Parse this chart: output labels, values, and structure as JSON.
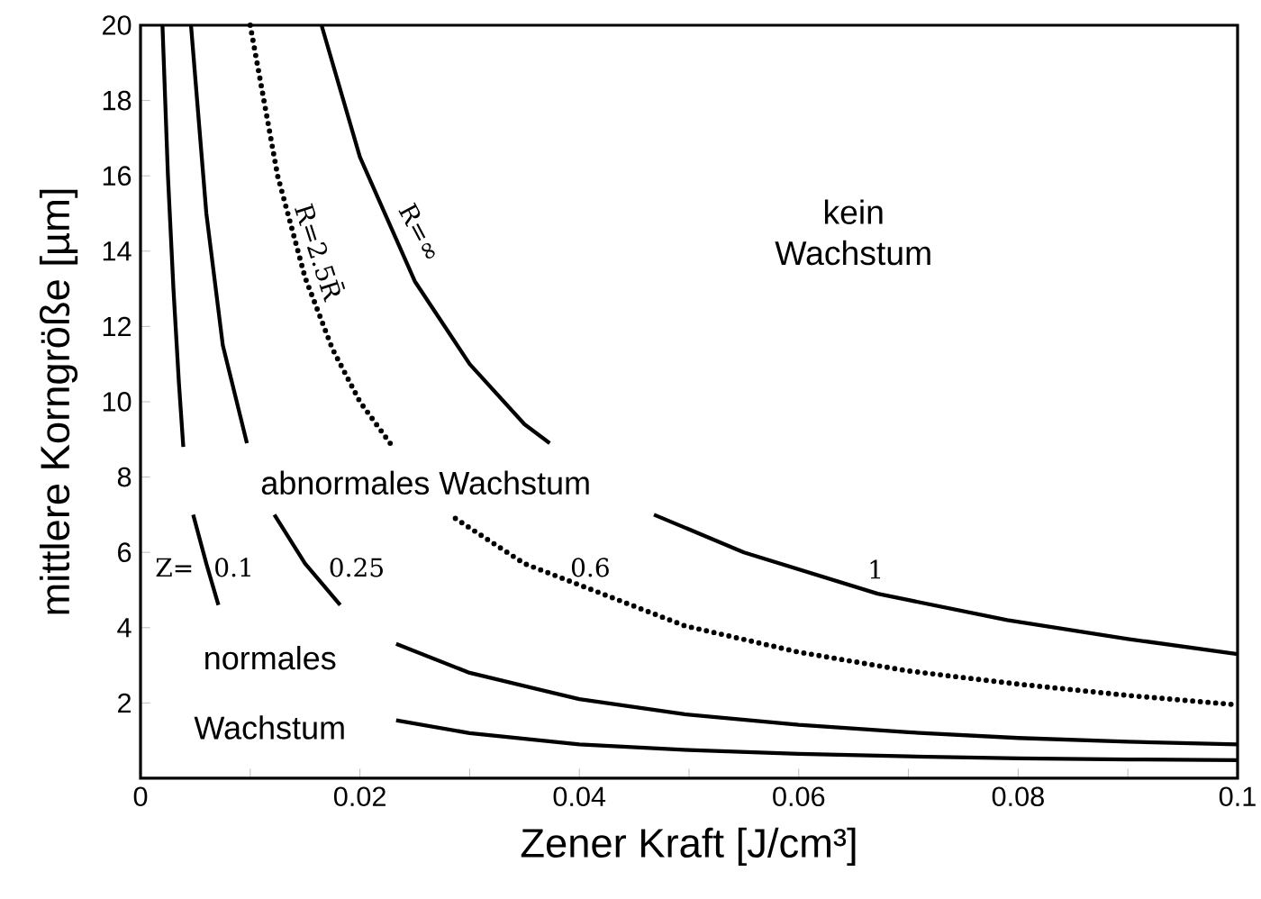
{
  "chart_data": {
    "type": "line",
    "xlabel": "Zener Kraft [J/cm³]",
    "ylabel": "mittlere Korngröße [µm]",
    "xlim": [
      0,
      0.1
    ],
    "ylim": [
      0,
      20
    ],
    "xticks": [
      0,
      {
        "value": 0.01,
        "label": null
      },
      0.02,
      {
        "value": 0.03,
        "label": null
      },
      0.04,
      {
        "value": 0.05,
        "label": null
      },
      0.06,
      {
        "value": 0.07,
        "label": null
      },
      0.08,
      {
        "value": 0.09,
        "label": null
      },
      0.1
    ],
    "yticks": [
      2,
      4,
      6,
      8,
      10,
      12,
      14,
      16,
      18,
      20
    ],
    "grid": false,
    "legend": false,
    "marker": "none",
    "series": [
      {
        "name": "0.1",
        "color": "#000000",
        "line_style": "solid",
        "x": [
          0.002,
          0.0025,
          0.003,
          0.0035,
          0.0039,
          0.0043,
          0.0048,
          0.006,
          0.0071,
          0.015,
          0.0233,
          0.03,
          0.04,
          0.05,
          0.06,
          0.07,
          0.08,
          0.09,
          0.1
        ],
        "values": [
          20,
          16,
          13,
          10.5,
          8.8,
          null,
          7.0,
          5.7,
          4.6,
          null,
          1.54,
          1.2,
          0.9,
          0.75,
          0.65,
          0.58,
          0.53,
          0.5,
          0.48
        ]
      },
      {
        "name": "0.25",
        "color": "#000000",
        "line_style": "solid",
        "x": [
          0.0046,
          0.006,
          0.0075,
          0.0097,
          0.011,
          0.0122,
          0.015,
          0.0182,
          0.021,
          0.0233,
          0.03,
          0.04,
          0.0496,
          0.06,
          0.07,
          0.08,
          0.09,
          0.1
        ],
        "values": [
          20,
          15,
          11.5,
          8.9,
          null,
          7.0,
          5.7,
          4.6,
          null,
          3.57,
          2.8,
          2.1,
          1.7,
          1.42,
          1.22,
          1.07,
          0.97,
          0.9
        ]
      },
      {
        "name": "0.6",
        "color": "#000000",
        "line_style": "dotted",
        "x": [
          0.01,
          0.0125,
          0.015,
          0.0175,
          0.02,
          0.023,
          0.026,
          0.0287,
          0.035,
          0.0496,
          0.06,
          0.07,
          0.08,
          0.09,
          0.1
        ],
        "values": [
          20,
          16,
          13.3,
          11.4,
          10,
          8.8,
          null,
          6.9,
          5.7,
          4.05,
          3.35,
          2.85,
          2.5,
          2.2,
          1.95
        ]
      },
      {
        "name": "1",
        "color": "#000000",
        "line_style": "solid",
        "x": [
          0.0165,
          0.02,
          0.025,
          0.03,
          0.035,
          0.0373,
          0.042,
          0.0468,
          0.055,
          0.0672,
          0.079,
          0.09,
          0.1
        ],
        "values": [
          20,
          16.5,
          13.2,
          11,
          9.4,
          8.9,
          null,
          7.0,
          6.0,
          4.9,
          4.2,
          3.7,
          3.3
        ]
      }
    ],
    "annotations": [
      "Z=",
      "R=2.5R̄",
      "R=∞",
      "kein Wachstum",
      "abnormales Wachstum",
      "normales",
      "Wachstum"
    ]
  }
}
